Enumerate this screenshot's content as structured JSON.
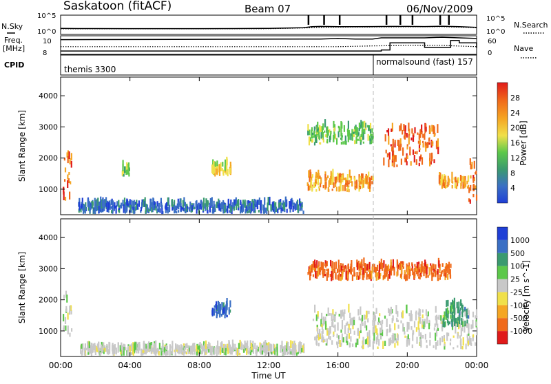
{
  "header": {
    "station": "Saskatoon (fitACF)",
    "beam": "Beam 07",
    "date": "06/Nov/2009"
  },
  "sidebar_labels": {
    "nsky": "N.Sky",
    "freq_line1": "Freq.",
    "freq_line2": "[MHz]",
    "cpid": "CPID",
    "nsearch": "N.Search",
    "nave": "Nave"
  },
  "cpid_modes": {
    "left": "themis 3300",
    "right": "normalsound (fast) 157"
  },
  "chart_data": [
    {
      "type": "line",
      "panel": "noise",
      "series": [
        {
          "name": "N.Sky",
          "style": "solid",
          "x": [
            0,
            1,
            2,
            4,
            6,
            8,
            10,
            12,
            14,
            14.5,
            15,
            16,
            17,
            18,
            19,
            20,
            21,
            22,
            23,
            24
          ],
          "y": [
            20,
            18,
            18,
            17,
            17,
            17,
            18,
            20,
            30,
            60,
            70,
            60,
            60,
            65,
            70,
            70,
            65,
            80,
            60,
            40
          ]
        },
        {
          "name": "N.Search",
          "style": "dotted",
          "x": [
            0,
            4,
            8,
            12,
            14,
            16,
            18,
            20,
            22,
            24
          ],
          "y": [
            15,
            15,
            15,
            16,
            25,
            45,
            50,
            55,
            60,
            30
          ]
        }
      ],
      "left_axis": {
        "ticks": [
          "10^5",
          "10^0"
        ]
      },
      "right_axis": {
        "ticks": [
          "10^5",
          "10^0"
        ]
      },
      "xlim": [
        0,
        24
      ]
    },
    {
      "type": "line",
      "panel": "frequency",
      "series": [
        {
          "name": "Freq",
          "style": "solid",
          "x": [
            0,
            14,
            15,
            16,
            17,
            18,
            18.5,
            19,
            20,
            21,
            22,
            23,
            24
          ],
          "y": [
            10.2,
            10.3,
            10.3,
            10.4,
            10.3,
            10.3,
            10.5,
            10.5,
            10.5,
            10.5,
            10.6,
            10.5,
            10.4
          ]
        },
        {
          "name": "Nave",
          "style": "step-solid",
          "x": [
            0,
            18,
            18.5,
            19,
            20,
            21,
            22,
            22.5,
            23,
            24
          ],
          "y": [
            8,
            8,
            12,
            40,
            40,
            22,
            22,
            50,
            40,
            20
          ]
        },
        {
          "name": "Nave-dotted",
          "style": "dotted",
          "x": [
            0,
            16,
            18,
            20,
            22,
            24
          ],
          "y": [
            25,
            25,
            28,
            30,
            30,
            25
          ]
        }
      ],
      "left_axis": {
        "ticks": [
          "10",
          "8"
        ]
      },
      "right_axis": {
        "ticks": [
          "60",
          "0"
        ]
      },
      "xlim": [
        0,
        24
      ]
    },
    {
      "type": "heatmap",
      "panel": "power",
      "ylabel": "Slant Range [km]",
      "yticks": [
        "4000",
        "3000",
        "2000",
        "1000"
      ],
      "ylim": [
        180,
        4600
      ],
      "xlim": [
        0,
        24
      ],
      "colorbar": {
        "label": "Power [dB]",
        "ticks": [
          "28",
          "24",
          "20",
          "16",
          "12",
          "8",
          "4"
        ],
        "colors": [
          "#1f3fd6",
          "#3a6fc4",
          "#3a9a6f",
          "#5cc84a",
          "#f0e04a",
          "#f5a623",
          "#f06a1a",
          "#e01a1a"
        ]
      },
      "regions": [
        {
          "t": [
            0.1,
            0.6
          ],
          "r": [
            600,
            2100
          ],
          "level": 26
        },
        {
          "t": [
            1.0,
            14.0
          ],
          "r": [
            200,
            500
          ],
          "level": 8
        },
        {
          "t": [
            3.5,
            4.0
          ],
          "r": [
            1400,
            1700
          ],
          "level": 14
        },
        {
          "t": [
            8.7,
            9.8
          ],
          "r": [
            1400,
            1800
          ],
          "level": 18
        },
        {
          "t": [
            14.2,
            18.0
          ],
          "r": [
            900,
            1400
          ],
          "level": 24
        },
        {
          "t": [
            14.2,
            18.0
          ],
          "r": [
            2400,
            3000
          ],
          "level": 14
        },
        {
          "t": [
            18.6,
            21.8
          ],
          "r": [
            1700,
            2900
          ],
          "level": 28
        },
        {
          "t": [
            21.8,
            23.5
          ],
          "r": [
            1000,
            1300
          ],
          "level": 22
        },
        {
          "t": [
            23.5,
            24.0
          ],
          "r": [
            500,
            1800
          ],
          "level": 26
        }
      ]
    },
    {
      "type": "heatmap",
      "panel": "velocity",
      "ylabel": "Slant Range [km]",
      "xlabel": "Time UT",
      "yticks": [
        "4000",
        "3000",
        "2000",
        "1000"
      ],
      "xticks": [
        "00:00",
        "04:00",
        "08:00",
        "12:00",
        "16:00",
        "20:00",
        "00:00"
      ],
      "ylim": [
        180,
        4600
      ],
      "xlim": [
        0,
        24
      ],
      "colorbar": {
        "label": "Velocity [m s^-1]",
        "ticks": [
          "1000",
          "500",
          "100",
          "25",
          "-25",
          "-100",
          "-500",
          "-1000"
        ],
        "colors": [
          "#1f3fd6",
          "#3a6fc4",
          "#3a9a6f",
          "#5cc84a",
          "#c8c8c8",
          "#f0e04a",
          "#f5a623",
          "#f06a1a",
          "#e01a1a"
        ]
      },
      "regions": [
        {
          "t": [
            0.1,
            0.6
          ],
          "r": [
            800,
            2100
          ],
          "level": 0
        },
        {
          "t": [
            1.0,
            14.0
          ],
          "r": [
            200,
            450
          ],
          "level": 0
        },
        {
          "t": [
            8.7,
            9.8
          ],
          "r": [
            1400,
            1800
          ],
          "level": 500
        },
        {
          "t": [
            14.2,
            18.0
          ],
          "r": [
            2600,
            3100
          ],
          "level": -500
        },
        {
          "t": [
            14.5,
            24.0
          ],
          "r": [
            400,
            1600
          ],
          "level": 0
        },
        {
          "t": [
            18.0,
            22.5
          ],
          "r": [
            2600,
            3100
          ],
          "level": -500
        },
        {
          "t": [
            22.0,
            23.5
          ],
          "r": [
            1100,
            1800
          ],
          "level": 100
        }
      ]
    }
  ]
}
